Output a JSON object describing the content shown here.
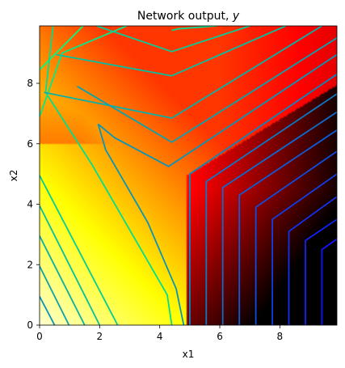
{
  "chart_data": {
    "type": "heatmap",
    "title": "Network output, ",
    "title_var": "y",
    "xlabel": "x1",
    "ylabel": "x2",
    "xlim": [
      0,
      9.9
    ],
    "ylim": [
      0,
      9.9
    ],
    "xticks": [
      0,
      2,
      4,
      6,
      8
    ],
    "yticks": [
      0,
      2,
      4,
      6,
      8
    ],
    "colormap": "hot",
    "contour_colormap": "winter",
    "contours": [
      {
        "level": 1,
        "points": [
          [
            1.45,
            9.9
          ],
          [
            0.0,
            8.45
          ]
        ]
      },
      {
        "level": 2,
        "points": [
          [
            2.9,
            9.9
          ],
          [
            0.75,
            9.0
          ],
          [
            0.0,
            6.9
          ]
        ]
      },
      {
        "level": 3,
        "points": [
          [
            4.4,
            9.75
          ],
          [
            4.6,
            9.8
          ],
          [
            5.9,
            9.9
          ]
        ]
      },
      {
        "level": 3,
        "points": [
          [
            0.45,
            9.9
          ],
          [
            0.2,
            7.7
          ],
          [
            1.75,
            5.3
          ],
          [
            4.25,
            1.0
          ],
          [
            4.4,
            0.0
          ]
        ]
      },
      {
        "level": 4,
        "points": [
          [
            1.9,
            9.9
          ],
          [
            4.4,
            9.05
          ],
          [
            7.0,
            9.9
          ]
        ]
      },
      {
        "level": 4,
        "points": [
          [
            0.0,
            4.95
          ],
          [
            2.6,
            0.0
          ]
        ]
      },
      {
        "level": 5,
        "points": [
          [
            0.55,
            8.95
          ],
          [
            4.4,
            8.25
          ],
          [
            8.2,
            9.9
          ]
        ]
      },
      {
        "level": 5,
        "points": [
          [
            0.0,
            3.95
          ],
          [
            2.0,
            0.0
          ]
        ]
      },
      {
        "level": 6,
        "points": [
          [
            0.15,
            7.7
          ],
          [
            4.4,
            6.85
          ],
          [
            9.4,
            9.9
          ]
        ]
      },
      {
        "level": 6,
        "points": [
          [
            0.0,
            2.95
          ],
          [
            1.5,
            0.0
          ]
        ]
      },
      {
        "level": 7,
        "points": [
          [
            1.25,
            7.9
          ],
          [
            4.4,
            6.05
          ],
          [
            9.9,
            9.5
          ]
        ]
      },
      {
        "level": 7,
        "points": [
          [
            0.0,
            1.95
          ],
          [
            0.98,
            0.0
          ]
        ]
      },
      {
        "level": 8,
        "points": [
          [
            1.95,
            6.65
          ],
          [
            2.5,
            6.2
          ],
          [
            4.3,
            5.25
          ],
          [
            9.9,
            8.95
          ]
        ]
      },
      {
        "level": 8,
        "points": [
          [
            1.95,
            6.65
          ],
          [
            2.2,
            5.8
          ],
          [
            3.6,
            3.4
          ],
          [
            4.55,
            1.2
          ],
          [
            4.8,
            0.0
          ]
        ]
      },
      {
        "level": 8,
        "points": [
          [
            0.0,
            0.95
          ],
          [
            0.5,
            0.0
          ]
        ]
      },
      {
        "level": 9,
        "points": [
          [
            5.0,
            0.0
          ],
          [
            5.0,
            5.0
          ],
          [
            9.9,
            8.3
          ]
        ]
      },
      {
        "level": 10,
        "points": [
          [
            5.55,
            0.0
          ],
          [
            5.55,
            4.75
          ],
          [
            9.9,
            7.65
          ]
        ]
      },
      {
        "level": 11,
        "points": [
          [
            6.1,
            0.0
          ],
          [
            6.1,
            4.55
          ],
          [
            9.9,
            7.05
          ]
        ]
      },
      {
        "level": 12,
        "points": [
          [
            6.65,
            0.0
          ],
          [
            6.65,
            4.3
          ],
          [
            9.9,
            6.45
          ]
        ]
      },
      {
        "level": 13,
        "points": [
          [
            7.2,
            0.0
          ],
          [
            7.2,
            3.9
          ],
          [
            9.9,
            5.75
          ]
        ]
      },
      {
        "level": 14,
        "points": [
          [
            7.75,
            0.0
          ],
          [
            7.75,
            3.5
          ],
          [
            9.9,
            5.0
          ]
        ]
      },
      {
        "level": 15,
        "points": [
          [
            8.3,
            0.0
          ],
          [
            8.3,
            3.1
          ],
          [
            9.9,
            4.25
          ]
        ]
      },
      {
        "level": 16,
        "points": [
          [
            8.85,
            0.0
          ],
          [
            8.85,
            2.8
          ],
          [
            9.9,
            3.5
          ]
        ]
      },
      {
        "level": 17,
        "points": [
          [
            9.4,
            0.0
          ],
          [
            9.4,
            2.5
          ],
          [
            9.9,
            2.85
          ]
        ]
      }
    ]
  }
}
